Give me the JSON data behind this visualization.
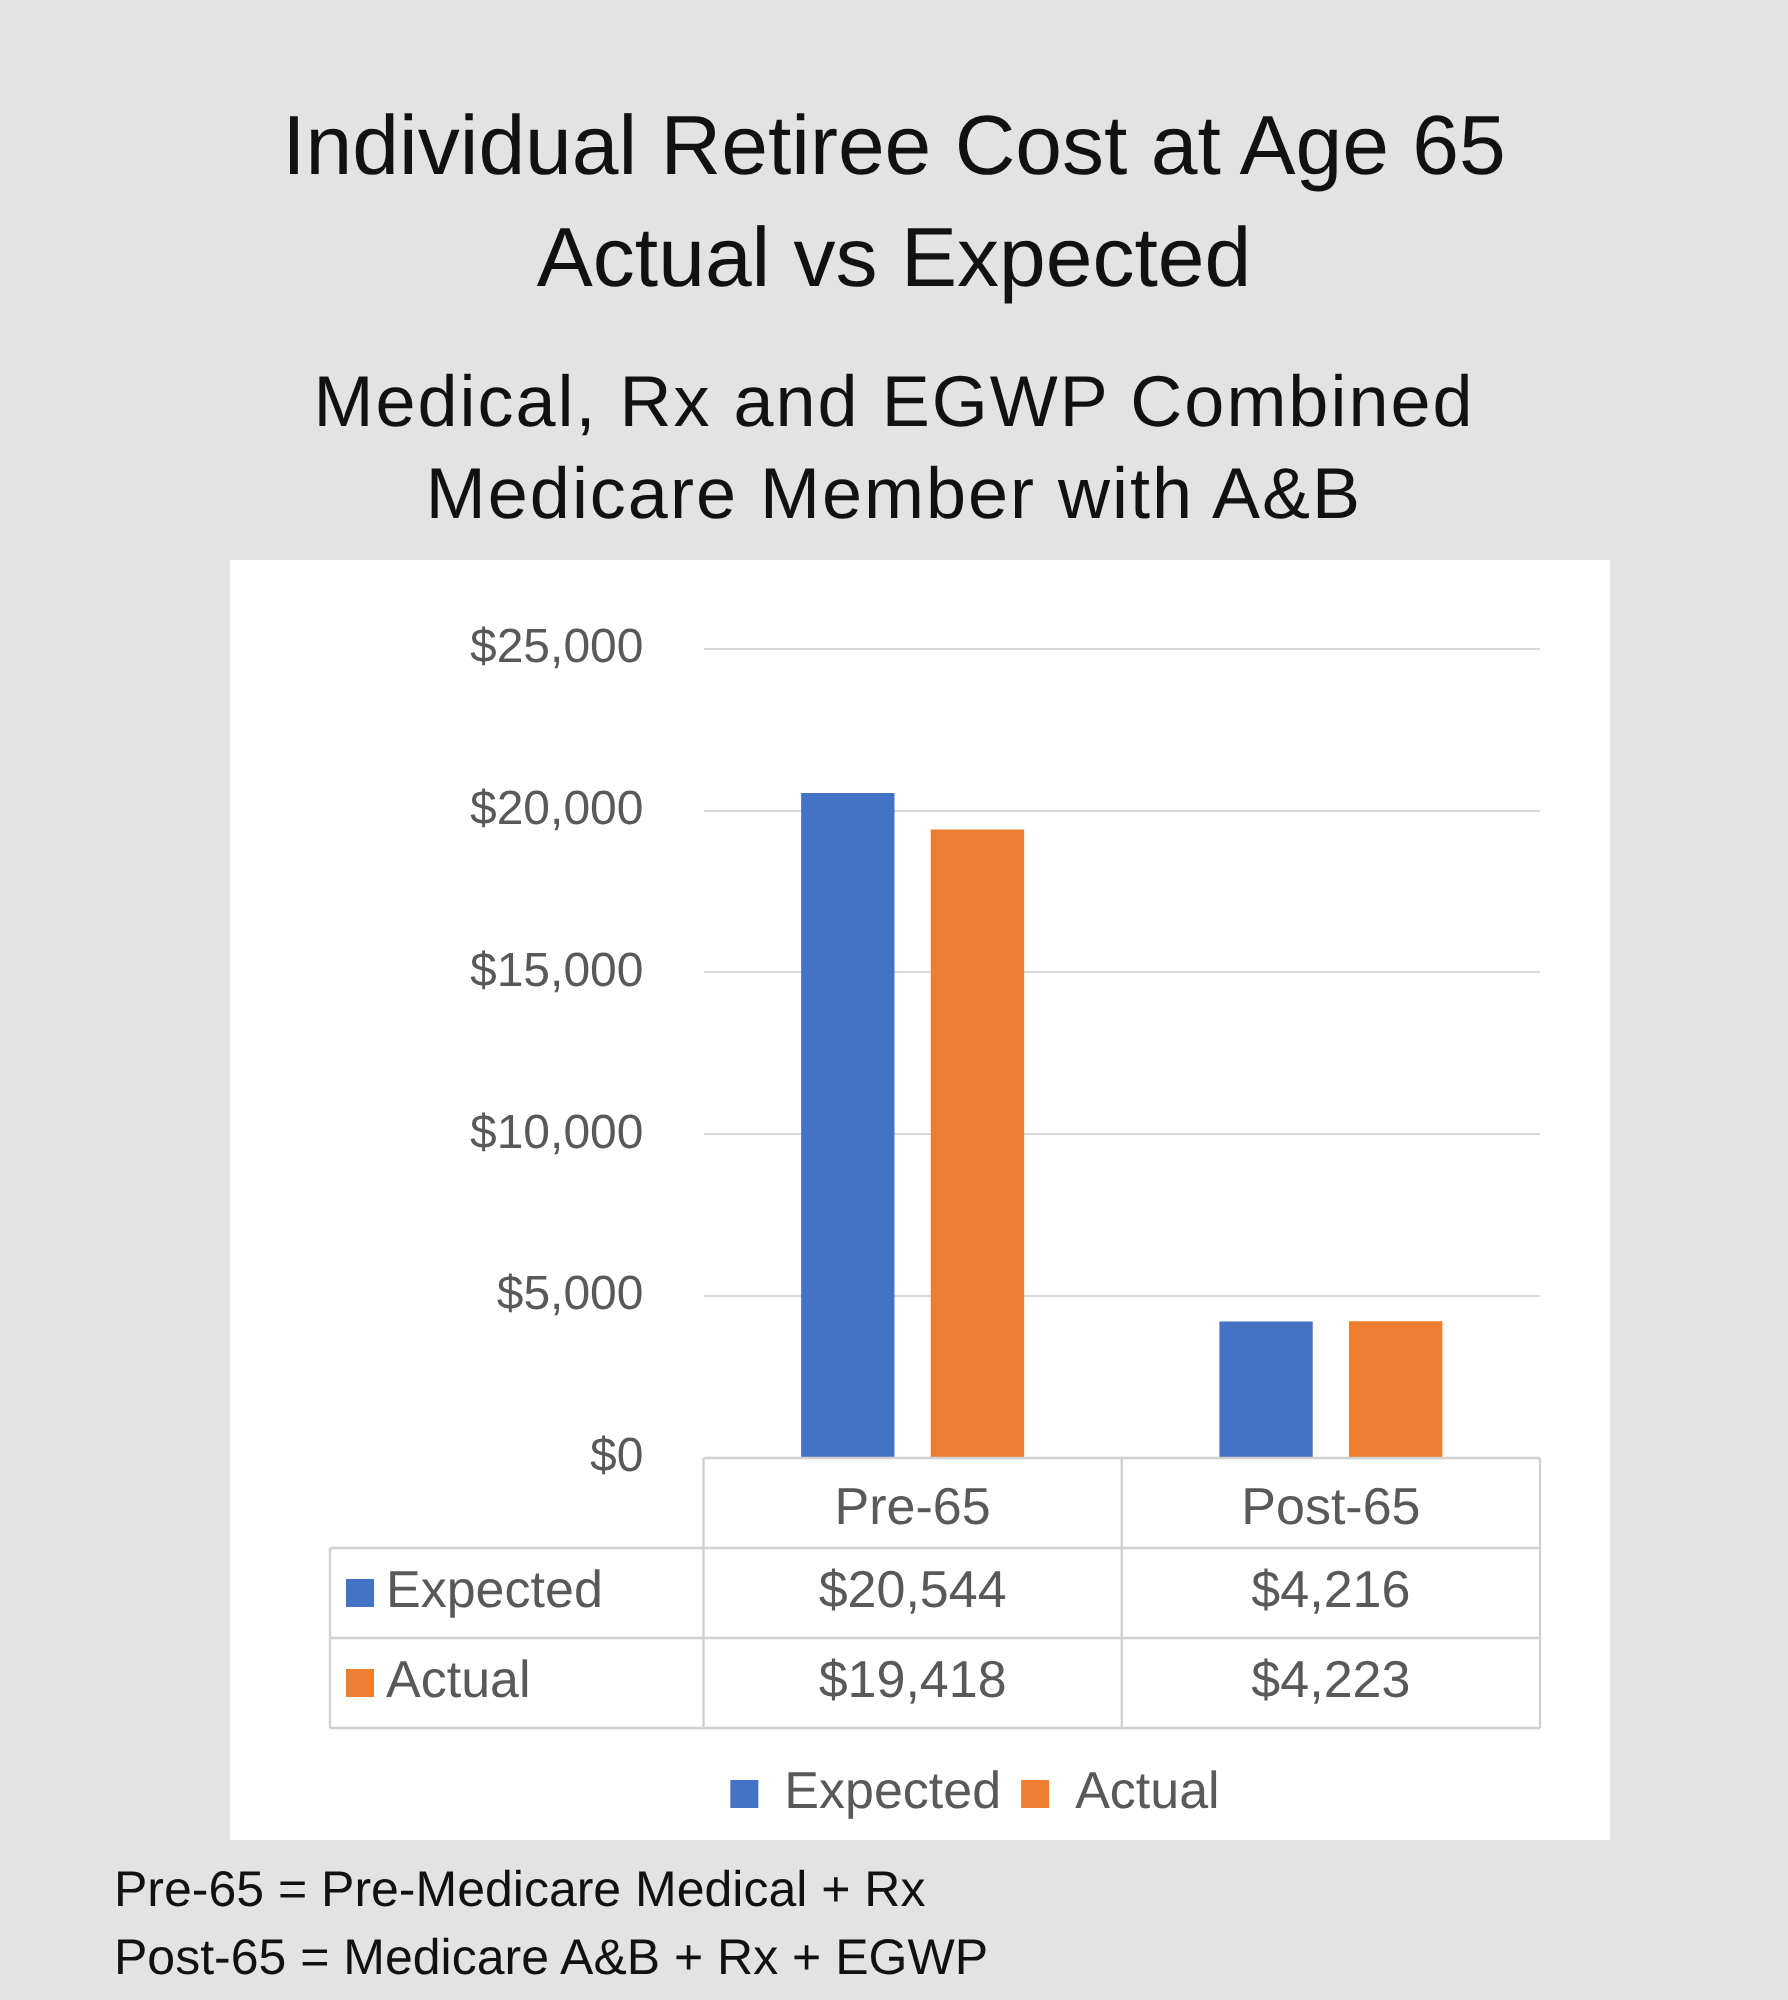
{
  "chart_data": {
    "type": "bar",
    "title": "Individual Retiree Cost at Age 65\nActual vs Expected",
    "subtitle": "Medical,  Rx and EGWP Combined\nMedicare Member with A&B",
    "categories": [
      "Pre-65",
      "Post-65"
    ],
    "series": [
      {
        "name": "Expected",
        "color": "#4472c4",
        "values": [
          20544,
          4216
        ],
        "value_labels": [
          "$20,544",
          "$4,216"
        ]
      },
      {
        "name": "Actual",
        "color": "#ed7d31",
        "values": [
          19418,
          4223
        ],
        "value_labels": [
          "$19,418",
          "$4,223"
        ]
      }
    ],
    "ylim": [
      0,
      25000
    ],
    "yticks": [
      {
        "value": 0,
        "label": "$0"
      },
      {
        "value": 5000,
        "label": "$5,000"
      },
      {
        "value": 10000,
        "label": "$10,000"
      },
      {
        "value": 15000,
        "label": "$15,000"
      },
      {
        "value": 20000,
        "label": "$20,000"
      },
      {
        "value": 25000,
        "label": "$25,000"
      }
    ],
    "grid": "y",
    "legend": "bottom",
    "annotations": [
      "Pre-65 = Pre-Medicare Medical + Rx",
      "Post-65 = Medicare A&B + Rx + EGWP"
    ]
  }
}
